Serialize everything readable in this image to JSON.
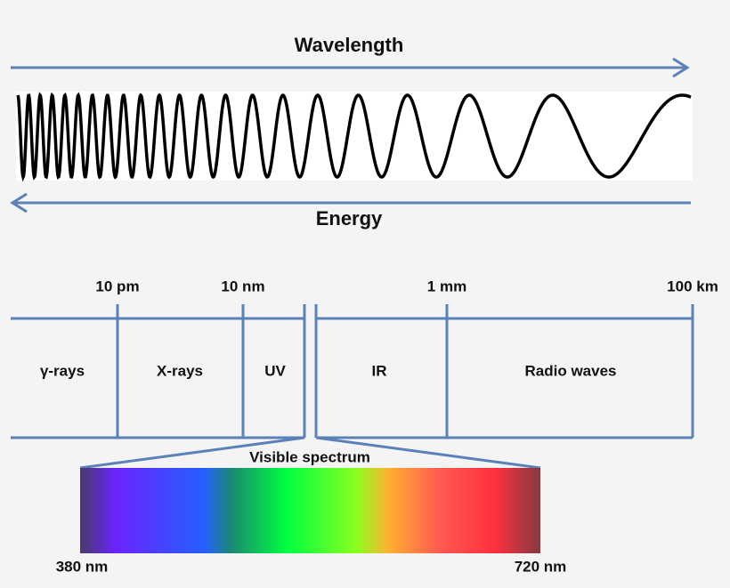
{
  "header": {
    "top_label": "Wavelength",
    "bottom_label": "Energy"
  },
  "scale": {
    "ticks": [
      "10 pm",
      "10 nm",
      "1 mm",
      "100 km"
    ],
    "regions": [
      "γ-rays",
      "X-rays",
      "UV",
      "IR",
      "Radio waves"
    ]
  },
  "visible": {
    "title": "Visible spectrum",
    "start": "380 nm",
    "end": "720 nm"
  }
}
